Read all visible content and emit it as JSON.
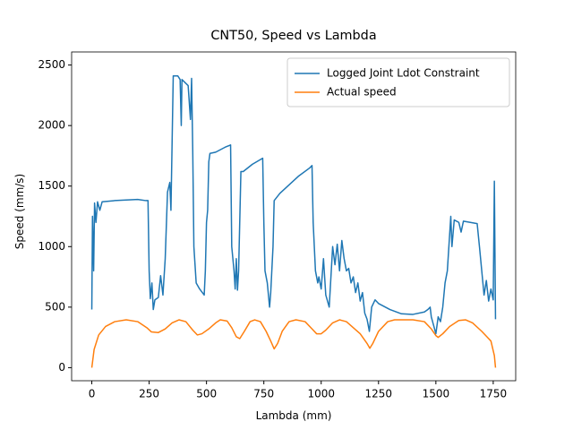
{
  "chart_data": {
    "type": "line",
    "title": "CNT50, Speed vs Lambda",
    "xlabel": "Lambda (mm)",
    "ylabel": "Speed (mm/s)",
    "xlim": [
      -88,
      1848
    ],
    "ylim": [
      -108,
      2608
    ],
    "xticks": [
      0,
      250,
      500,
      750,
      1000,
      1250,
      1500,
      1750
    ],
    "yticks": [
      0,
      500,
      1000,
      1500,
      2000,
      2500
    ],
    "legend": "upper right",
    "series": [
      {
        "name": "Logged Joint Ldot Constraint",
        "color": "#1f77b4",
        "x": [
          0,
          3,
          8,
          12,
          18,
          25,
          35,
          45,
          100,
          200,
          235,
          245,
          250,
          255,
          262,
          268,
          275,
          290,
          300,
          310,
          320,
          330,
          340,
          345,
          355,
          375,
          385,
          390,
          393,
          420,
          430,
          435,
          440,
          445,
          455,
          470,
          490,
          495,
          500,
          505,
          510,
          515,
          540,
          580,
          605,
          610,
          620,
          625,
          630,
          635,
          640,
          650,
          660,
          700,
          745,
          750,
          755,
          765,
          775,
          780,
          790,
          795,
          820,
          900,
          950,
          960,
          965,
          970,
          975,
          985,
          990,
          1000,
          1010,
          1020,
          1035,
          1050,
          1060,
          1070,
          1080,
          1090,
          1100,
          1110,
          1120,
          1130,
          1140,
          1150,
          1160,
          1170,
          1180,
          1190,
          1200,
          1210,
          1220,
          1235,
          1250,
          1300,
          1350,
          1400,
          1450,
          1465,
          1475,
          1480,
          1490,
          1500,
          1510,
          1520,
          1530,
          1540,
          1550,
          1565,
          1570,
          1580,
          1600,
          1610,
          1620,
          1680,
          1690,
          1700,
          1710,
          1720,
          1730,
          1740,
          1750,
          1755,
          1760
        ],
        "values": [
          480,
          1250,
          800,
          1360,
          1200,
          1370,
          1300,
          1370,
          1380,
          1390,
          1380,
          1380,
          800,
          570,
          700,
          480,
          560,
          580,
          760,
          600,
          900,
          1450,
          1530,
          1300,
          2410,
          2410,
          2380,
          2000,
          2380,
          2330,
          2050,
          2390,
          1800,
          1000,
          700,
          650,
          600,
          800,
          1200,
          1300,
          1700,
          1770,
          1780,
          1820,
          1840,
          1000,
          800,
          650,
          900,
          640,
          800,
          1620,
          1620,
          1680,
          1730,
          1200,
          800,
          700,
          500,
          620,
          1000,
          1380,
          1440,
          1580,
          1650,
          1670,
          1200,
          1000,
          800,
          700,
          750,
          650,
          900,
          600,
          500,
          1000,
          850,
          1020,
          800,
          1050,
          900,
          800,
          820,
          700,
          750,
          620,
          700,
          550,
          620,
          450,
          400,
          300,
          500,
          560,
          530,
          480,
          445,
          440,
          460,
          480,
          500,
          420,
          350,
          280,
          420,
          380,
          500,
          700,
          800,
          1250,
          1000,
          1220,
          1200,
          1120,
          1210,
          1190,
          1000,
          800,
          600,
          720,
          550,
          650,
          560,
          1540,
          400
        ]
      },
      {
        "name": "Actual speed",
        "color": "#ff7f0e",
        "x": [
          0,
          10,
          30,
          60,
          100,
          150,
          200,
          240,
          260,
          290,
          320,
          350,
          380,
          410,
          440,
          460,
          480,
          510,
          540,
          560,
          590,
          610,
          630,
          645,
          665,
          690,
          710,
          735,
          760,
          780,
          795,
          810,
          830,
          860,
          890,
          930,
          960,
          980,
          1000,
          1020,
          1050,
          1080,
          1110,
          1140,
          1170,
          1200,
          1212,
          1225,
          1250,
          1290,
          1320,
          1400,
          1450,
          1480,
          1500,
          1510,
          1530,
          1560,
          1600,
          1630,
          1660,
          1700,
          1720,
          1740,
          1755,
          1760
        ],
        "values": [
          0,
          150,
          270,
          340,
          380,
          395,
          380,
          330,
          295,
          290,
          320,
          370,
          395,
          380,
          310,
          270,
          280,
          320,
          370,
          395,
          385,
          330,
          255,
          240,
          300,
          380,
          395,
          380,
          300,
          220,
          155,
          200,
          300,
          380,
          395,
          380,
          320,
          280,
          280,
          310,
          370,
          395,
          380,
          330,
          280,
          200,
          160,
          200,
          300,
          380,
          395,
          395,
          380,
          320,
          265,
          250,
          280,
          340,
          390,
          395,
          370,
          300,
          260,
          220,
          100,
          0
        ]
      }
    ]
  }
}
